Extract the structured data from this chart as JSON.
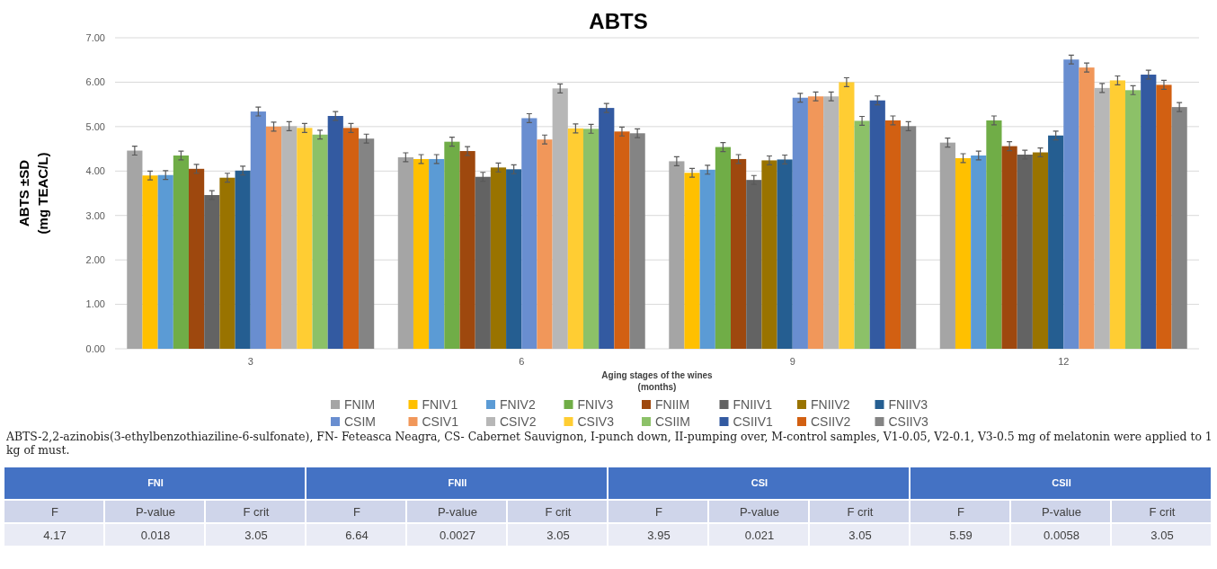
{
  "chart_data": [
    {
      "type": "bar",
      "title": "ABTS",
      "xlabel": "Aging stages of the wines\n(months)",
      "ylabel": "ABTS ±SD\n(mg TEAC/L)",
      "categories": [
        "3",
        "6",
        "9",
        "12"
      ],
      "ylim": [
        0,
        7
      ],
      "yticks": [
        {
          "value": 0,
          "label": "0.00"
        },
        {
          "value": 1,
          "label": "1.00"
        },
        {
          "value": 2,
          "label": "2.00"
        },
        {
          "value": 3,
          "label": "3.00"
        },
        {
          "value": 4,
          "label": "4.00"
        },
        {
          "value": 5,
          "label": "5.00"
        },
        {
          "value": 6,
          "label": "6.00"
        },
        {
          "value": 7,
          "label": "7.00"
        }
      ],
      "grid": "y",
      "legend": "bottom",
      "series": [
        {
          "name": "FNIM",
          "color": "#a5a5a5",
          "values": [
            4.46,
            4.31,
            4.22,
            4.64
          ],
          "errors": [
            0.1,
            0.1,
            0.1,
            0.1
          ]
        },
        {
          "name": "FNIV1",
          "color": "#ffc000",
          "values": [
            3.9,
            4.27,
            3.96,
            4.29
          ],
          "errors": [
            0.1,
            0.1,
            0.1,
            0.1
          ]
        },
        {
          "name": "FNIV2",
          "color": "#5b9bd5",
          "values": [
            3.91,
            4.27,
            4.03,
            4.35
          ],
          "errors": [
            0.1,
            0.1,
            0.1,
            0.1
          ]
        },
        {
          "name": "FNIV3",
          "color": "#70ad47",
          "values": [
            4.35,
            4.66,
            4.54,
            5.14
          ],
          "errors": [
            0.1,
            0.1,
            0.1,
            0.1
          ]
        },
        {
          "name": "FNIIM",
          "color": "#9e480e",
          "values": [
            4.05,
            4.45,
            4.27,
            4.56
          ],
          "errors": [
            0.1,
            0.1,
            0.1,
            0.1
          ]
        },
        {
          "name": "FNIIV1",
          "color": "#636363",
          "values": [
            3.46,
            3.87,
            3.8,
            4.37
          ],
          "errors": [
            0.1,
            0.1,
            0.1,
            0.1
          ]
        },
        {
          "name": "FNIIV2",
          "color": "#997300",
          "values": [
            3.85,
            4.08,
            4.24,
            4.42
          ],
          "errors": [
            0.1,
            0.1,
            0.1,
            0.1
          ]
        },
        {
          "name": "FNIIV3",
          "color": "#255e91",
          "values": [
            4.01,
            4.04,
            4.26,
            4.8
          ],
          "errors": [
            0.1,
            0.1,
            0.1,
            0.1
          ]
        },
        {
          "name": "CSIM",
          "color": "#698ed0",
          "values": [
            5.34,
            5.19,
            5.65,
            6.51
          ],
          "errors": [
            0.1,
            0.1,
            0.1,
            0.1
          ]
        },
        {
          "name": "CSIV1",
          "color": "#f1975a",
          "values": [
            5.0,
            4.71,
            5.68,
            6.33
          ],
          "errors": [
            0.1,
            0.1,
            0.1,
            0.1
          ]
        },
        {
          "name": "CSIV2",
          "color": "#b7b7b7",
          "values": [
            5.01,
            5.86,
            5.68,
            5.87
          ],
          "errors": [
            0.1,
            0.1,
            0.1,
            0.1
          ]
        },
        {
          "name": "CSIV3",
          "color": "#ffcd33",
          "values": [
            4.97,
            4.96,
            6.0,
            6.04
          ],
          "errors": [
            0.1,
            0.1,
            0.1,
            0.1
          ]
        },
        {
          "name": "CSIIM",
          "color": "#8cc168",
          "values": [
            4.82,
            4.95,
            5.13,
            5.82
          ],
          "errors": [
            0.1,
            0.1,
            0.1,
            0.1
          ]
        },
        {
          "name": "CSIIV1",
          "color": "#335aa1",
          "values": [
            5.24,
            5.42,
            5.59,
            6.17
          ],
          "errors": [
            0.1,
            0.1,
            0.1,
            0.1
          ]
        },
        {
          "name": "CSIIV2",
          "color": "#d26012",
          "values": [
            4.97,
            4.89,
            5.14,
            5.94
          ],
          "errors": [
            0.1,
            0.1,
            0.1,
            0.1
          ]
        },
        {
          "name": "CSIIV3",
          "color": "#848484",
          "values": [
            4.73,
            4.85,
            5.01,
            5.44
          ],
          "errors": [
            0.1,
            0.1,
            0.1,
            0.1
          ]
        }
      ],
      "annotations": [
        "ABTS-2,2-azinobis(3-ethylbenzothiaziline-6-sulfonate), FN- Feteasca Neagra, CS- Cabernet Sauvignon, I-punch down, II-pumping over, M-control samples, V1-0.05, V2-0.1, V3-0.5 mg of melatonin were applied to 1 kg of must."
      ]
    },
    {
      "type": "other",
      "title": "FNI",
      "categories": [
        "F",
        "P-value",
        "F crit"
      ],
      "values": [
        4.17,
        0.018,
        3.05
      ],
      "data_labels": true
    },
    {
      "type": "other",
      "title": "FNII",
      "categories": [
        "F",
        "P-value",
        "F crit"
      ],
      "values": [
        6.64,
        0.0027,
        3.05
      ],
      "data_labels": true
    },
    {
      "type": "other",
      "title": "CSI",
      "categories": [
        "F",
        "P-value",
        "F crit"
      ],
      "values": [
        3.95,
        0.021,
        3.05
      ],
      "data_labels": true
    },
    {
      "type": "other",
      "title": "CSII",
      "categories": [
        "F",
        "P-value",
        "F crit"
      ],
      "values": [
        5.59,
        0.0058,
        3.05
      ],
      "data_labels": true
    }
  ]
}
